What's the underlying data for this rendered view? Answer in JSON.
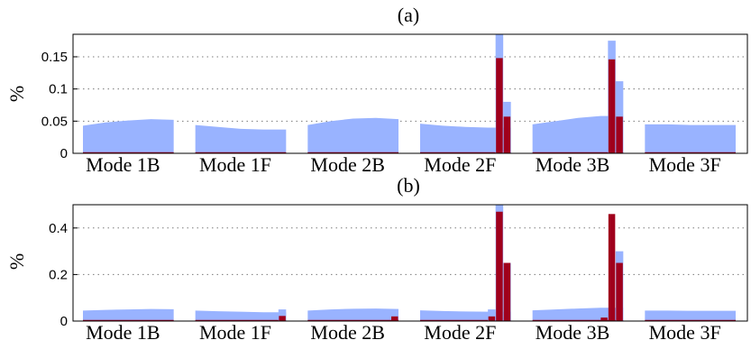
{
  "chart_data": [
    {
      "type": "bar",
      "title": "(a)",
      "ylabel": "%",
      "ylim": [
        0,
        0.185
      ],
      "yticks": [
        0,
        0.05,
        0.1,
        0.15
      ],
      "ytick_labels": [
        "0",
        "0.05",
        "0.1",
        "0.15"
      ],
      "categories": [
        "Mode 1B",
        "Mode 1F",
        "Mode 2B",
        "Mode 2F",
        "Mode 3B",
        "Mode 3F"
      ],
      "grid": "y-dotted",
      "colors": {
        "blue": "#99b3ff",
        "red": "#a0001c"
      },
      "series": [
        {
          "color": "blue",
          "kind": "area",
          "profiles": [
            [
              0.043,
              0.048,
              0.051,
              0.053,
              0.052
            ],
            [
              0.044,
              0.041,
              0.038,
              0.037,
              0.037
            ],
            [
              0.044,
              0.05,
              0.054,
              0.055,
              0.053
            ],
            [
              0.046,
              0.043,
              0.041,
              0.04,
              0.04
            ],
            [
              0.045,
              0.05,
              0.055,
              0.058,
              0.058
            ],
            [
              0.045,
              0.045,
              0.044,
              0.044,
              0.044
            ]
          ],
          "spikes": [
            {
              "category": "Mode 2F",
              "values": [
                0.185,
                0.08
              ]
            },
            {
              "category": "Mode 3B",
              "values": [
                0.175,
                0.112
              ]
            }
          ]
        },
        {
          "color": "red",
          "kind": "bar",
          "spikes": [
            {
              "category": "Mode 2F",
              "values": [
                0.148,
                0.057
              ]
            },
            {
              "category": "Mode 3B",
              "values": [
                0.146,
                0.057
              ]
            }
          ]
        }
      ]
    },
    {
      "type": "bar",
      "title": "(b)",
      "ylabel": "%",
      "ylim": [
        0,
        0.5
      ],
      "yticks": [
        0,
        0.2,
        0.4
      ],
      "ytick_labels": [
        "0",
        "0.2",
        "0.4"
      ],
      "categories": [
        "Mode 1B",
        "Mode 1F",
        "Mode 2B",
        "Mode 2F",
        "Mode 3B",
        "Mode 3F"
      ],
      "grid": "y-dotted",
      "colors": {
        "blue": "#99b3ff",
        "red": "#a0001c"
      },
      "series": [
        {
          "color": "blue",
          "kind": "area",
          "profiles": [
            [
              0.045,
              0.048,
              0.05,
              0.052,
              0.051
            ],
            [
              0.045,
              0.042,
              0.04,
              0.038,
              0.038
            ],
            [
              0.045,
              0.05,
              0.053,
              0.054,
              0.052
            ],
            [
              0.046,
              0.043,
              0.041,
              0.04,
              0.04
            ],
            [
              0.046,
              0.05,
              0.054,
              0.057,
              0.057
            ],
            [
              0.045,
              0.045,
              0.044,
              0.044,
              0.044
            ]
          ],
          "spikes": [
            {
              "category": "Mode 1F",
              "values": [
                0.05
              ]
            },
            {
              "category": "Mode 2F",
              "values": [
                0.05,
                0.5,
                0.25
              ]
            },
            {
              "category": "Mode 3B",
              "values": [
                0.3
              ]
            }
          ]
        },
        {
          "color": "red",
          "kind": "bar",
          "spikes": [
            {
              "category": "Mode 1F",
              "values": [
                0.022
              ]
            },
            {
              "category": "Mode 2B",
              "values": [
                0.02
              ]
            },
            {
              "category": "Mode 2F",
              "values": [
                0.02,
                0.47,
                0.25
              ]
            },
            {
              "category": "Mode 3B",
              "values": [
                0.015,
                0.46,
                0.25
              ]
            }
          ]
        }
      ]
    }
  ]
}
